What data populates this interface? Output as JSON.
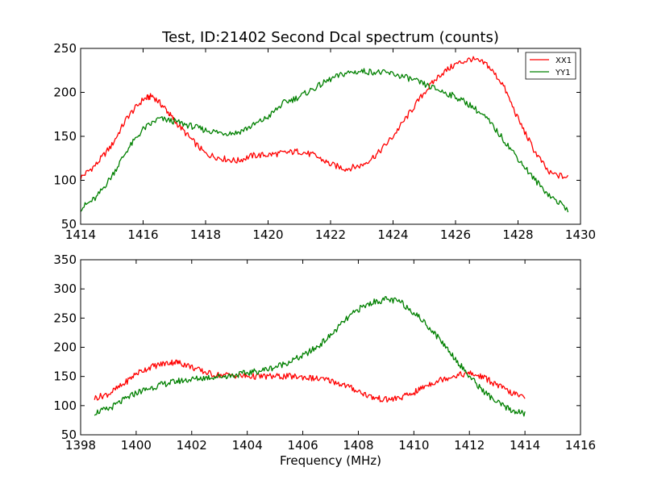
{
  "chart_data": [
    {
      "type": "line",
      "title": "Test, ID:21402 Second Dcal spectrum (counts)",
      "xlabel": "",
      "ylabel": "",
      "xlim": [
        1414,
        1430
      ],
      "ylim": [
        50,
        250
      ],
      "xticks": [
        1414,
        1416,
        1418,
        1420,
        1422,
        1424,
        1426,
        1428,
        1430
      ],
      "yticks": [
        50,
        100,
        150,
        200,
        250
      ],
      "legend": "top-right",
      "series": [
        {
          "name": "XX1",
          "color": "#ff0000",
          "points": [
            [
              1414.0,
              103
            ],
            [
              1414.5,
              118
            ],
            [
              1415.0,
              140
            ],
            [
              1415.5,
              172
            ],
            [
              1416.0,
              192
            ],
            [
              1416.3,
              196
            ],
            [
              1416.7,
              182
            ],
            [
              1417.0,
              168
            ],
            [
              1417.5,
              148
            ],
            [
              1418.0,
              130
            ],
            [
              1418.5,
              125
            ],
            [
              1419.0,
              122
            ],
            [
              1419.5,
              128
            ],
            [
              1420.0,
              129
            ],
            [
              1420.5,
              131
            ],
            [
              1421.0,
              133
            ],
            [
              1421.5,
              128
            ],
            [
              1422.0,
              118
            ],
            [
              1422.5,
              113
            ],
            [
              1423.0,
              117
            ],
            [
              1423.5,
              130
            ],
            [
              1424.0,
              150
            ],
            [
              1424.5,
              175
            ],
            [
              1425.0,
              200
            ],
            [
              1425.5,
              220
            ],
            [
              1426.0,
              232
            ],
            [
              1426.5,
              238
            ],
            [
              1427.0,
              232
            ],
            [
              1427.5,
              210
            ],
            [
              1428.0,
              170
            ],
            [
              1428.5,
              135
            ],
            [
              1429.0,
              108
            ],
            [
              1429.6,
              103
            ]
          ]
        },
        {
          "name": "YY1",
          "color": "#008000",
          "points": [
            [
              1414.0,
              68
            ],
            [
              1414.5,
              80
            ],
            [
              1415.0,
              105
            ],
            [
              1415.5,
              135
            ],
            [
              1416.0,
              158
            ],
            [
              1416.5,
              170
            ],
            [
              1417.0,
              167
            ],
            [
              1417.5,
              162
            ],
            [
              1418.0,
              157
            ],
            [
              1418.5,
              154
            ],
            [
              1419.0,
              154
            ],
            [
              1419.5,
              162
            ],
            [
              1420.0,
              172
            ],
            [
              1420.5,
              188
            ],
            [
              1421.0,
              195
            ],
            [
              1421.5,
              205
            ],
            [
              1422.0,
              215
            ],
            [
              1422.5,
              222
            ],
            [
              1423.0,
              224
            ],
            [
              1423.5,
              223
            ],
            [
              1424.0,
              221
            ],
            [
              1424.5,
              216
            ],
            [
              1425.0,
              209
            ],
            [
              1425.5,
              202
            ],
            [
              1426.0,
              195
            ],
            [
              1426.5,
              185
            ],
            [
              1427.0,
              170
            ],
            [
              1427.5,
              148
            ],
            [
              1428.0,
              125
            ],
            [
              1428.5,
              102
            ],
            [
              1429.0,
              83
            ],
            [
              1429.6,
              67
            ]
          ]
        }
      ]
    },
    {
      "type": "line",
      "title": "",
      "xlabel": "Frequency (MHz)",
      "ylabel": "",
      "xlim": [
        1398,
        1416
      ],
      "ylim": [
        50,
        350
      ],
      "xticks": [
        1398,
        1400,
        1402,
        1404,
        1406,
        1408,
        1410,
        1412,
        1414,
        1416
      ],
      "yticks": [
        50,
        100,
        150,
        200,
        250,
        300,
        350
      ],
      "series": [
        {
          "color": "#ff0000",
          "points": [
            [
              1398.5,
              113
            ],
            [
              1399.0,
              120
            ],
            [
              1399.5,
              135
            ],
            [
              1400.0,
              155
            ],
            [
              1400.5,
              166
            ],
            [
              1401.0,
              172
            ],
            [
              1401.4,
              175
            ],
            [
              1401.8,
              170
            ],
            [
              1402.3,
              160
            ],
            [
              1402.8,
              153
            ],
            [
              1403.5,
              152
            ],
            [
              1404.0,
              150
            ],
            [
              1404.5,
              150
            ],
            [
              1405.0,
              150
            ],
            [
              1405.5,
              150
            ],
            [
              1406.0,
              149
            ],
            [
              1406.5,
              146
            ],
            [
              1407.0,
              143
            ],
            [
              1407.5,
              135
            ],
            [
              1408.0,
              125
            ],
            [
              1408.5,
              114
            ],
            [
              1409.0,
              110
            ],
            [
              1409.5,
              113
            ],
            [
              1410.0,
              122
            ],
            [
              1410.5,
              136
            ],
            [
              1411.0,
              145
            ],
            [
              1411.5,
              152
            ],
            [
              1412.0,
              155
            ],
            [
              1412.5,
              149
            ],
            [
              1413.0,
              135
            ],
            [
              1413.5,
              122
            ],
            [
              1414.0,
              113
            ]
          ]
        },
        {
          "color": "#008000",
          "points": [
            [
              1398.5,
              88
            ],
            [
              1399.0,
              94
            ],
            [
              1399.5,
              108
            ],
            [
              1400.0,
              122
            ],
            [
              1400.5,
              130
            ],
            [
              1401.0,
              137
            ],
            [
              1401.5,
              142
            ],
            [
              1402.0,
              145
            ],
            [
              1402.5,
              148
            ],
            [
              1403.0,
              150
            ],
            [
              1403.5,
              152
            ],
            [
              1404.0,
              156
            ],
            [
              1404.5,
              160
            ],
            [
              1405.0,
              166
            ],
            [
              1405.5,
              175
            ],
            [
              1406.0,
              185
            ],
            [
              1406.5,
              200
            ],
            [
              1407.0,
              220
            ],
            [
              1407.5,
              245
            ],
            [
              1408.0,
              265
            ],
            [
              1408.5,
              277
            ],
            [
              1409.0,
              282
            ],
            [
              1409.5,
              278
            ],
            [
              1410.0,
              260
            ],
            [
              1410.5,
              237
            ],
            [
              1411.0,
              210
            ],
            [
              1411.5,
              180
            ],
            [
              1412.0,
              150
            ],
            [
              1412.5,
              125
            ],
            [
              1413.0,
              105
            ],
            [
              1413.5,
              92
            ],
            [
              1414.0,
              86
            ]
          ]
        }
      ]
    }
  ]
}
